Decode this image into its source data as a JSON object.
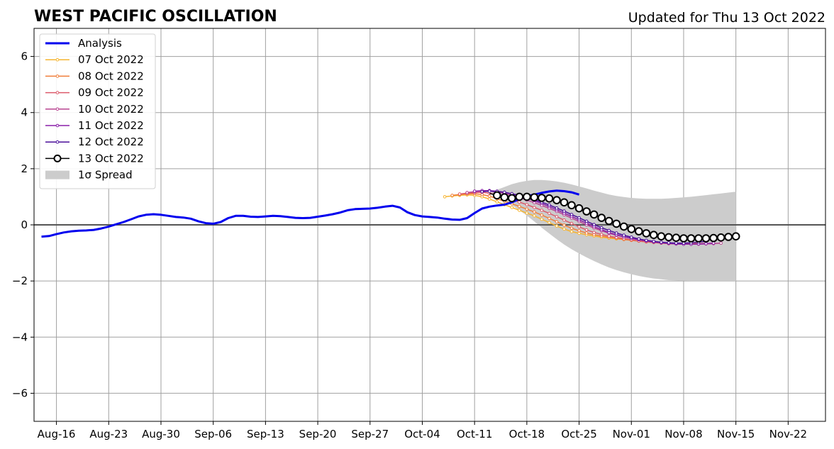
{
  "chart_data": {
    "type": "line",
    "title": "WEST PACIFIC OSCILLATION",
    "updated": "Updated for Thu 13 Oct 2022",
    "y_range": [
      -7,
      7
    ],
    "y_ticks": [
      -6,
      -4,
      -2,
      0,
      2,
      4,
      6
    ],
    "y_tick_labels": [
      "−6",
      "−4",
      "−2",
      "0",
      "2",
      "4",
      "6"
    ],
    "x_range": [
      "2022-08-13",
      "2022-11-27"
    ],
    "x_ticks": [
      "2022-08-16",
      "2022-08-23",
      "2022-08-30",
      "2022-09-06",
      "2022-09-13",
      "2022-09-20",
      "2022-09-27",
      "2022-10-04",
      "2022-10-11",
      "2022-10-18",
      "2022-10-25",
      "2022-11-01",
      "2022-11-08",
      "2022-11-15",
      "2022-11-22"
    ],
    "x_tick_labels": [
      "Aug-16",
      "Aug-23",
      "Aug-30",
      "Sep-06",
      "Sep-13",
      "Sep-20",
      "Sep-27",
      "Oct-04",
      "Oct-11",
      "Oct-18",
      "Oct-25",
      "Nov-01",
      "Nov-08",
      "Nov-15",
      "Nov-22"
    ],
    "grid": true,
    "legend_placement": "top-left",
    "analysis": {
      "name": "Analysis",
      "color": "#0000ee",
      "start": "2022-08-14",
      "values": [
        -0.42,
        -0.4,
        -0.33,
        -0.27,
        -0.23,
        -0.21,
        -0.2,
        -0.18,
        -0.13,
        -0.06,
        0.02,
        0.1,
        0.2,
        0.3,
        0.36,
        0.38,
        0.36,
        0.32,
        0.28,
        0.26,
        0.22,
        0.13,
        0.06,
        0.04,
        0.1,
        0.24,
        0.32,
        0.32,
        0.29,
        0.28,
        0.3,
        0.32,
        0.31,
        0.28,
        0.25,
        0.24,
        0.25,
        0.29,
        0.33,
        0.38,
        0.44,
        0.52,
        0.56,
        0.57,
        0.58,
        0.61,
        0.65,
        0.68,
        0.62,
        0.45,
        0.35,
        0.3,
        0.28,
        0.26,
        0.22,
        0.19,
        0.18,
        0.24,
        0.42,
        0.58,
        0.65,
        0.69,
        0.72,
        0.8,
        0.92,
        1.02,
        1.08,
        1.14,
        1.19,
        1.22,
        1.2,
        1.16,
        1.08
      ]
    },
    "forecasts": [
      {
        "name": "07 Oct 2022",
        "color": "#f6b531",
        "start": "2022-10-07",
        "values": [
          1.0,
          1.03,
          1.05,
          1.07,
          1.05,
          1.0,
          0.92,
          0.82,
          0.72,
          0.62,
          0.52,
          0.42,
          0.32,
          0.2,
          0.08,
          -0.04,
          -0.15,
          -0.24,
          -0.3,
          -0.35,
          -0.4,
          -0.44,
          -0.47,
          -0.5,
          -0.52,
          -0.55,
          -0.57,
          -0.6,
          -0.62,
          -0.64,
          -0.65,
          -0.66,
          -0.66,
          -0.66,
          -0.65
        ]
      },
      {
        "name": "08 Oct 2022",
        "color": "#f07e3a",
        "start": "2022-10-08",
        "values": [
          1.05,
          1.08,
          1.1,
          1.11,
          1.08,
          1.02,
          0.93,
          0.84,
          0.75,
          0.66,
          0.56,
          0.46,
          0.35,
          0.23,
          0.11,
          -0.01,
          -0.12,
          -0.21,
          -0.29,
          -0.35,
          -0.4,
          -0.44,
          -0.48,
          -0.52,
          -0.55,
          -0.58,
          -0.61,
          -0.63,
          -0.65,
          -0.67,
          -0.68,
          -0.68,
          -0.68,
          -0.67,
          -0.66
        ]
      },
      {
        "name": "09 Oct 2022",
        "color": "#dc5a6a",
        "start": "2022-10-09",
        "values": [
          1.1,
          1.13,
          1.15,
          1.16,
          1.13,
          1.07,
          0.99,
          0.9,
          0.81,
          0.72,
          0.62,
          0.52,
          0.41,
          0.29,
          0.17,
          0.05,
          -0.07,
          -0.18,
          -0.27,
          -0.34,
          -0.4,
          -0.45,
          -0.49,
          -0.53,
          -0.57,
          -0.6,
          -0.63,
          -0.65,
          -0.67,
          -0.68,
          -0.69,
          -0.69,
          -0.68,
          -0.67,
          -0.65
        ]
      },
      {
        "name": "10 Oct 2022",
        "color": "#b84490",
        "start": "2022-10-10",
        "values": [
          1.15,
          1.18,
          1.2,
          1.2,
          1.17,
          1.12,
          1.05,
          0.97,
          0.88,
          0.79,
          0.69,
          0.59,
          0.48,
          0.36,
          0.24,
          0.12,
          0.0,
          -0.11,
          -0.21,
          -0.3,
          -0.37,
          -0.43,
          -0.48,
          -0.52,
          -0.56,
          -0.6,
          -0.63,
          -0.66,
          -0.68,
          -0.69,
          -0.69,
          -0.69,
          -0.68,
          -0.67,
          -0.65
        ]
      },
      {
        "name": "11 Oct 2022",
        "color": "#8a1fa8",
        "start": "2022-10-11",
        "values": [
          1.2,
          1.22,
          1.22,
          1.2,
          1.16,
          1.1,
          1.03,
          0.95,
          0.86,
          0.76,
          0.65,
          0.54,
          0.42,
          0.3,
          0.18,
          0.06,
          -0.06,
          -0.17,
          -0.27,
          -0.35,
          -0.42,
          -0.48,
          -0.53,
          -0.57,
          -0.61,
          -0.64,
          -0.66,
          -0.68,
          -0.69,
          -0.69,
          -0.68,
          -0.67,
          -0.65
        ]
      },
      {
        "name": "12 Oct 2022",
        "color": "#4a0f9a",
        "start": "2022-10-12",
        "values": [
          1.18,
          1.2,
          1.19,
          1.16,
          1.11,
          1.05,
          0.98,
          0.9,
          0.81,
          0.71,
          0.6,
          0.49,
          0.37,
          0.25,
          0.13,
          0.01,
          -0.1,
          -0.2,
          -0.29,
          -0.37,
          -0.44,
          -0.5,
          -0.55,
          -0.59,
          -0.62,
          -0.64,
          -0.65,
          -0.65,
          -0.64,
          -0.62,
          -0.59
        ]
      }
    ],
    "current": {
      "name": "13 Oct 2022",
      "color": "#000000",
      "start": "2022-10-13",
      "values": [
        1.12,
        1.05,
        0.98,
        0.95,
        1.0,
        1.0,
        0.98,
        0.96,
        0.94,
        0.88,
        0.8,
        0.7,
        0.59,
        0.48,
        0.37,
        0.25,
        0.14,
        0.04,
        -0.06,
        -0.15,
        -0.23,
        -0.3,
        -0.36,
        -0.41,
        -0.44,
        -0.46,
        -0.48,
        -0.48,
        -0.48,
        -0.48,
        -0.47,
        -0.45,
        -0.43,
        -0.41
      ]
    },
    "spread": {
      "name": "1σ Spread",
      "color": "#cccccc",
      "start": "2022-10-13",
      "upper": [
        1.12,
        1.25,
        1.35,
        1.45,
        1.52,
        1.57,
        1.6,
        1.6,
        1.58,
        1.55,
        1.5,
        1.44,
        1.37,
        1.3,
        1.22,
        1.15,
        1.08,
        1.03,
        0.99,
        0.96,
        0.94,
        0.93,
        0.93,
        0.93,
        0.94,
        0.96,
        0.98,
        1.0,
        1.03,
        1.06,
        1.09,
        1.12,
        1.15,
        1.18
      ],
      "lower": [
        1.12,
        1.0,
        0.85,
        0.7,
        0.52,
        0.33,
        0.12,
        -0.1,
        -0.31,
        -0.51,
        -0.7,
        -0.87,
        -1.02,
        -1.16,
        -1.29,
        -1.41,
        -1.52,
        -1.61,
        -1.69,
        -1.76,
        -1.82,
        -1.87,
        -1.91,
        -1.94,
        -1.97,
        -1.98,
        -1.99,
        -2.0,
        -2.0,
        -2.0,
        -2.0,
        -2.0,
        -2.0,
        -2.0
      ]
    },
    "legend": [
      "Analysis",
      "07 Oct 2022",
      "08 Oct 2022",
      "09 Oct 2022",
      "10 Oct 2022",
      "11 Oct 2022",
      "12 Oct 2022",
      "13 Oct 2022",
      "1σ Spread"
    ]
  }
}
